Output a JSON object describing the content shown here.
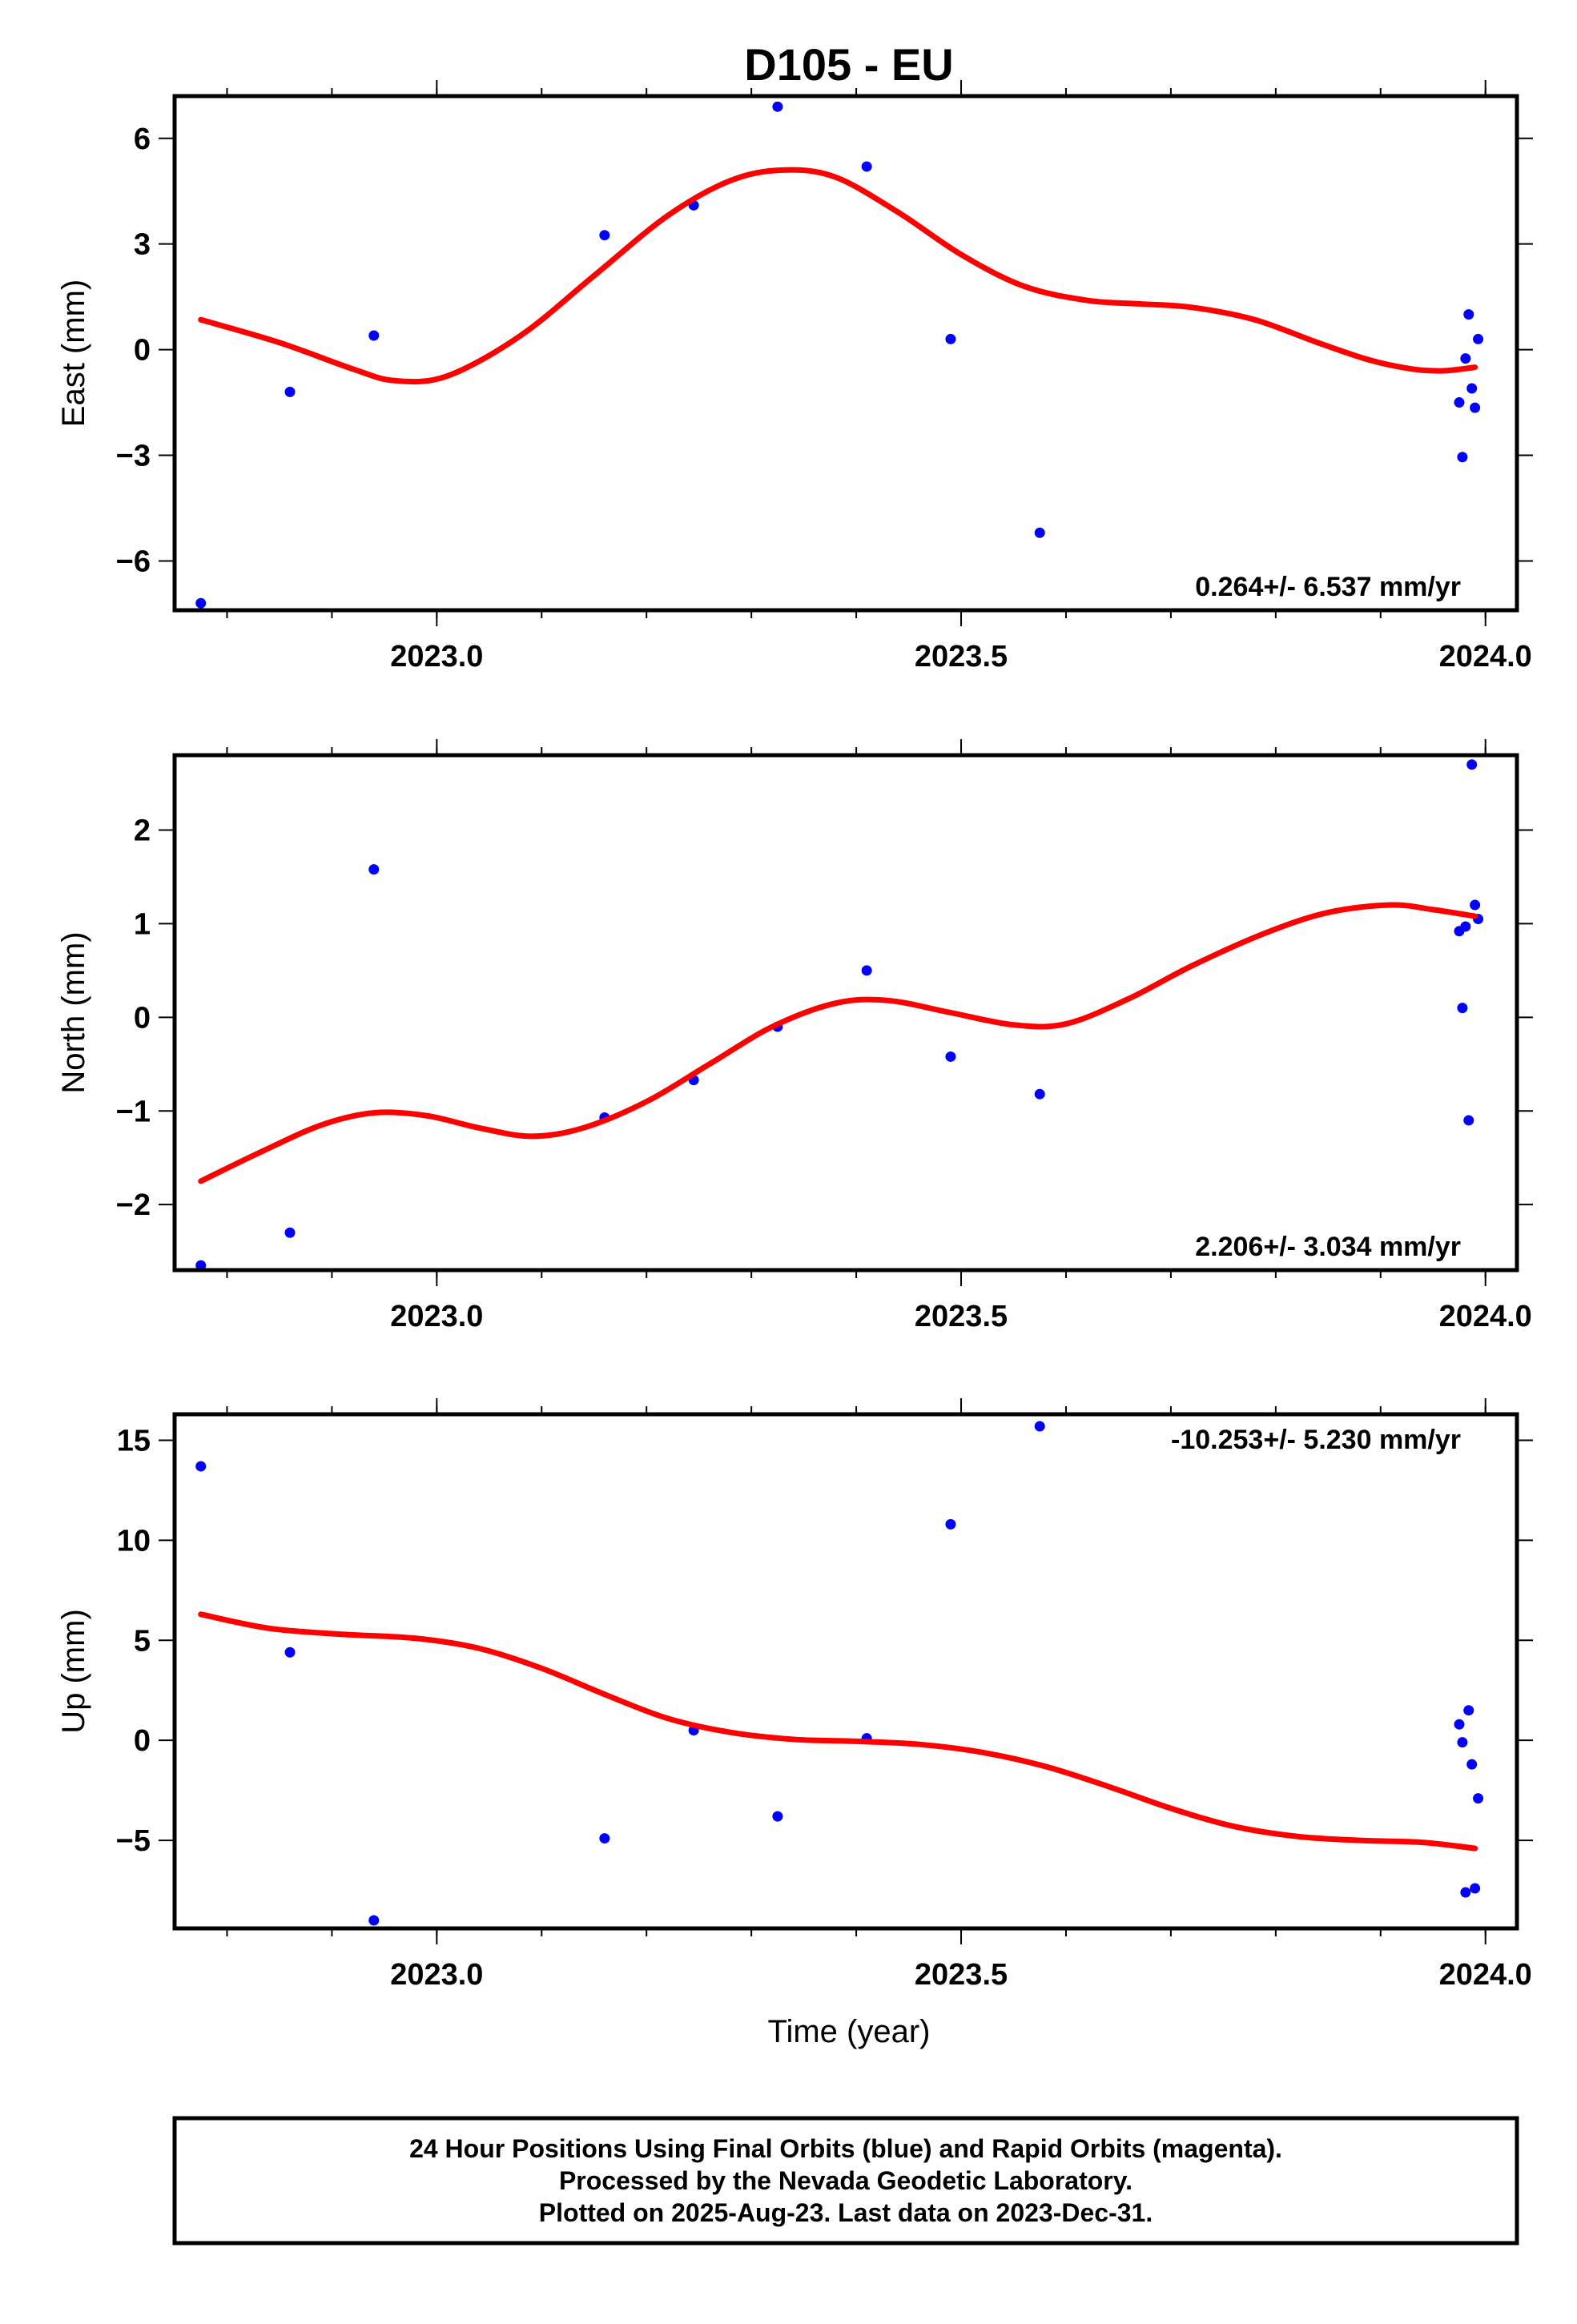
{
  "title": "D105 - EU",
  "xlabel": "Time (year)",
  "colors": {
    "final": "#0000ff",
    "fit": "#ff0000",
    "frame": "#000000"
  },
  "footer": {
    "line1": "24 Hour Positions Using Final Orbits (blue) and Rapid Orbits (magenta).",
    "line2": "Processed by the Nevada Geodetic Laboratory.",
    "line3": "Plotted on 2025-Aug-23. Last data on 2023-Dec-31."
  },
  "chart_data": [
    {
      "type": "scatter",
      "ylabel": "East (mm)",
      "rate_text": "0.264+/- 6.537 mm/yr",
      "rate_position": "bottom-right",
      "xlim": [
        2022.75,
        2024.03
      ],
      "ylim": [
        -7.4,
        7.2
      ],
      "xticks": [
        2023.0,
        2023.5,
        2024.0
      ],
      "xtick_labels": [
        "2023.0",
        "2023.5",
        "2024.0"
      ],
      "xminor_step": 0.1,
      "yticks": [
        -6,
        -3,
        0,
        3,
        6
      ],
      "ytick_labels": [
        "−6",
        "−3",
        "0",
        "3",
        "6"
      ],
      "series": [
        {
          "name": "Final Orbits (blue)",
          "points": [
            [
              2022.775,
              -7.2
            ],
            [
              2022.86,
              -1.2
            ],
            [
              2022.94,
              0.4
            ],
            [
              2023.16,
              3.25
            ],
            [
              2023.245,
              4.1
            ],
            [
              2023.325,
              6.9
            ],
            [
              2023.41,
              5.2
            ],
            [
              2023.49,
              0.3
            ],
            [
              2023.575,
              -5.2
            ],
            [
              2023.975,
              -1.5
            ],
            [
              2023.978,
              -3.05
            ],
            [
              2023.981,
              -0.25
            ],
            [
              2023.984,
              1.0
            ],
            [
              2023.987,
              -1.1
            ],
            [
              2023.99,
              -1.65
            ],
            [
              2023.993,
              0.3
            ]
          ]
        }
      ],
      "trend": [
        [
          2022.775,
          0.85
        ],
        [
          2022.85,
          0.2
        ],
        [
          2022.92,
          -0.55
        ],
        [
          2022.96,
          -0.88
        ],
        [
          2023.01,
          -0.75
        ],
        [
          2023.08,
          0.4
        ],
        [
          2023.15,
          2.1
        ],
        [
          2023.22,
          3.8
        ],
        [
          2023.28,
          4.8
        ],
        [
          2023.33,
          5.1
        ],
        [
          2023.38,
          4.9
        ],
        [
          2023.44,
          3.9
        ],
        [
          2023.5,
          2.7
        ],
        [
          2023.56,
          1.8
        ],
        [
          2023.62,
          1.4
        ],
        [
          2023.67,
          1.3
        ],
        [
          2023.72,
          1.2
        ],
        [
          2023.78,
          0.85
        ],
        [
          2023.84,
          0.2
        ],
        [
          2023.89,
          -0.3
        ],
        [
          2023.93,
          -0.55
        ],
        [
          2023.96,
          -0.6
        ],
        [
          2023.99,
          -0.5
        ]
      ]
    },
    {
      "type": "scatter",
      "ylabel": "North (mm)",
      "rate_text": "2.206+/- 3.034 mm/yr",
      "rate_position": "bottom-right",
      "xlim": [
        2022.75,
        2024.03
      ],
      "ylim": [
        -2.7,
        2.8
      ],
      "xticks": [
        2023.0,
        2023.5,
        2024.0
      ],
      "xtick_labels": [
        "2023.0",
        "2023.5",
        "2024.0"
      ],
      "xminor_step": 0.1,
      "yticks": [
        -2,
        -1,
        0,
        1,
        2
      ],
      "ytick_labels": [
        "−2",
        "−1",
        "0",
        "1",
        "2"
      ],
      "series": [
        {
          "name": "Final Orbits (blue)",
          "points": [
            [
              2022.775,
              -2.65
            ],
            [
              2022.86,
              -2.3
            ],
            [
              2022.94,
              1.58
            ],
            [
              2023.16,
              -1.07
            ],
            [
              2023.245,
              -0.67
            ],
            [
              2023.325,
              -0.1
            ],
            [
              2023.41,
              0.5
            ],
            [
              2023.49,
              -0.42
            ],
            [
              2023.575,
              -0.82
            ],
            [
              2023.975,
              0.92
            ],
            [
              2023.978,
              0.1
            ],
            [
              2023.981,
              0.97
            ],
            [
              2023.984,
              -1.1
            ],
            [
              2023.987,
              2.7
            ],
            [
              2023.99,
              1.2
            ],
            [
              2023.993,
              1.05
            ]
          ]
        }
      ],
      "trend": [
        [
          2022.775,
          -1.75
        ],
        [
          2022.83,
          -1.45
        ],
        [
          2022.89,
          -1.15
        ],
        [
          2022.94,
          -1.02
        ],
        [
          2022.99,
          -1.05
        ],
        [
          2023.04,
          -1.18
        ],
        [
          2023.09,
          -1.27
        ],
        [
          2023.14,
          -1.18
        ],
        [
          2023.2,
          -0.9
        ],
        [
          2023.26,
          -0.5
        ],
        [
          2023.32,
          -0.1
        ],
        [
          2023.38,
          0.15
        ],
        [
          2023.43,
          0.18
        ],
        [
          2023.49,
          0.05
        ],
        [
          2023.55,
          -0.08
        ],
        [
          2023.6,
          -0.07
        ],
        [
          2023.66,
          0.2
        ],
        [
          2023.72,
          0.55
        ],
        [
          2023.79,
          0.9
        ],
        [
          2023.85,
          1.12
        ],
        [
          2023.91,
          1.2
        ],
        [
          2023.95,
          1.15
        ],
        [
          2023.99,
          1.08
        ]
      ]
    },
    {
      "type": "scatter",
      "ylabel": "Up (mm)",
      "rate_text": "-10.253+/- 5.230 mm/yr",
      "rate_position": "top-right",
      "xlim": [
        2022.75,
        2024.03
      ],
      "ylim": [
        -9.4,
        16.3
      ],
      "xticks": [
        2023.0,
        2023.5,
        2024.0
      ],
      "xtick_labels": [
        "2023.0",
        "2023.5",
        "2024.0"
      ],
      "xminor_step": 0.1,
      "yticks": [
        -5,
        0,
        5,
        10,
        15
      ],
      "ytick_labels": [
        "−5",
        "0",
        "5",
        "10",
        "15"
      ],
      "series": [
        {
          "name": "Final Orbits (blue)",
          "points": [
            [
              2022.775,
              13.7
            ],
            [
              2022.86,
              4.4
            ],
            [
              2022.94,
              -9.0
            ],
            [
              2023.16,
              -4.9
            ],
            [
              2023.245,
              0.5
            ],
            [
              2023.325,
              -3.8
            ],
            [
              2023.41,
              0.1
            ],
            [
              2023.49,
              10.8
            ],
            [
              2023.575,
              15.7
            ],
            [
              2023.975,
              0.8
            ],
            [
              2023.978,
              -0.1
            ],
            [
              2023.981,
              -7.6
            ],
            [
              2023.984,
              1.5
            ],
            [
              2023.987,
              -1.2
            ],
            [
              2023.99,
              -7.4
            ],
            [
              2023.993,
              -2.9
            ]
          ]
        }
      ],
      "trend": [
        [
          2022.775,
          6.3
        ],
        [
          2022.84,
          5.6
        ],
        [
          2022.91,
          5.3
        ],
        [
          2022.98,
          5.1
        ],
        [
          2023.04,
          4.6
        ],
        [
          2023.1,
          3.6
        ],
        [
          2023.16,
          2.3
        ],
        [
          2023.22,
          1.1
        ],
        [
          2023.28,
          0.4
        ],
        [
          2023.34,
          0.05
        ],
        [
          2023.4,
          -0.05
        ],
        [
          2023.46,
          -0.2
        ],
        [
          2023.52,
          -0.6
        ],
        [
          2023.58,
          -1.3
        ],
        [
          2023.64,
          -2.3
        ],
        [
          2023.7,
          -3.4
        ],
        [
          2023.76,
          -4.3
        ],
        [
          2023.82,
          -4.8
        ],
        [
          2023.88,
          -5.0
        ],
        [
          2023.94,
          -5.1
        ],
        [
          2023.99,
          -5.4
        ]
      ]
    }
  ]
}
